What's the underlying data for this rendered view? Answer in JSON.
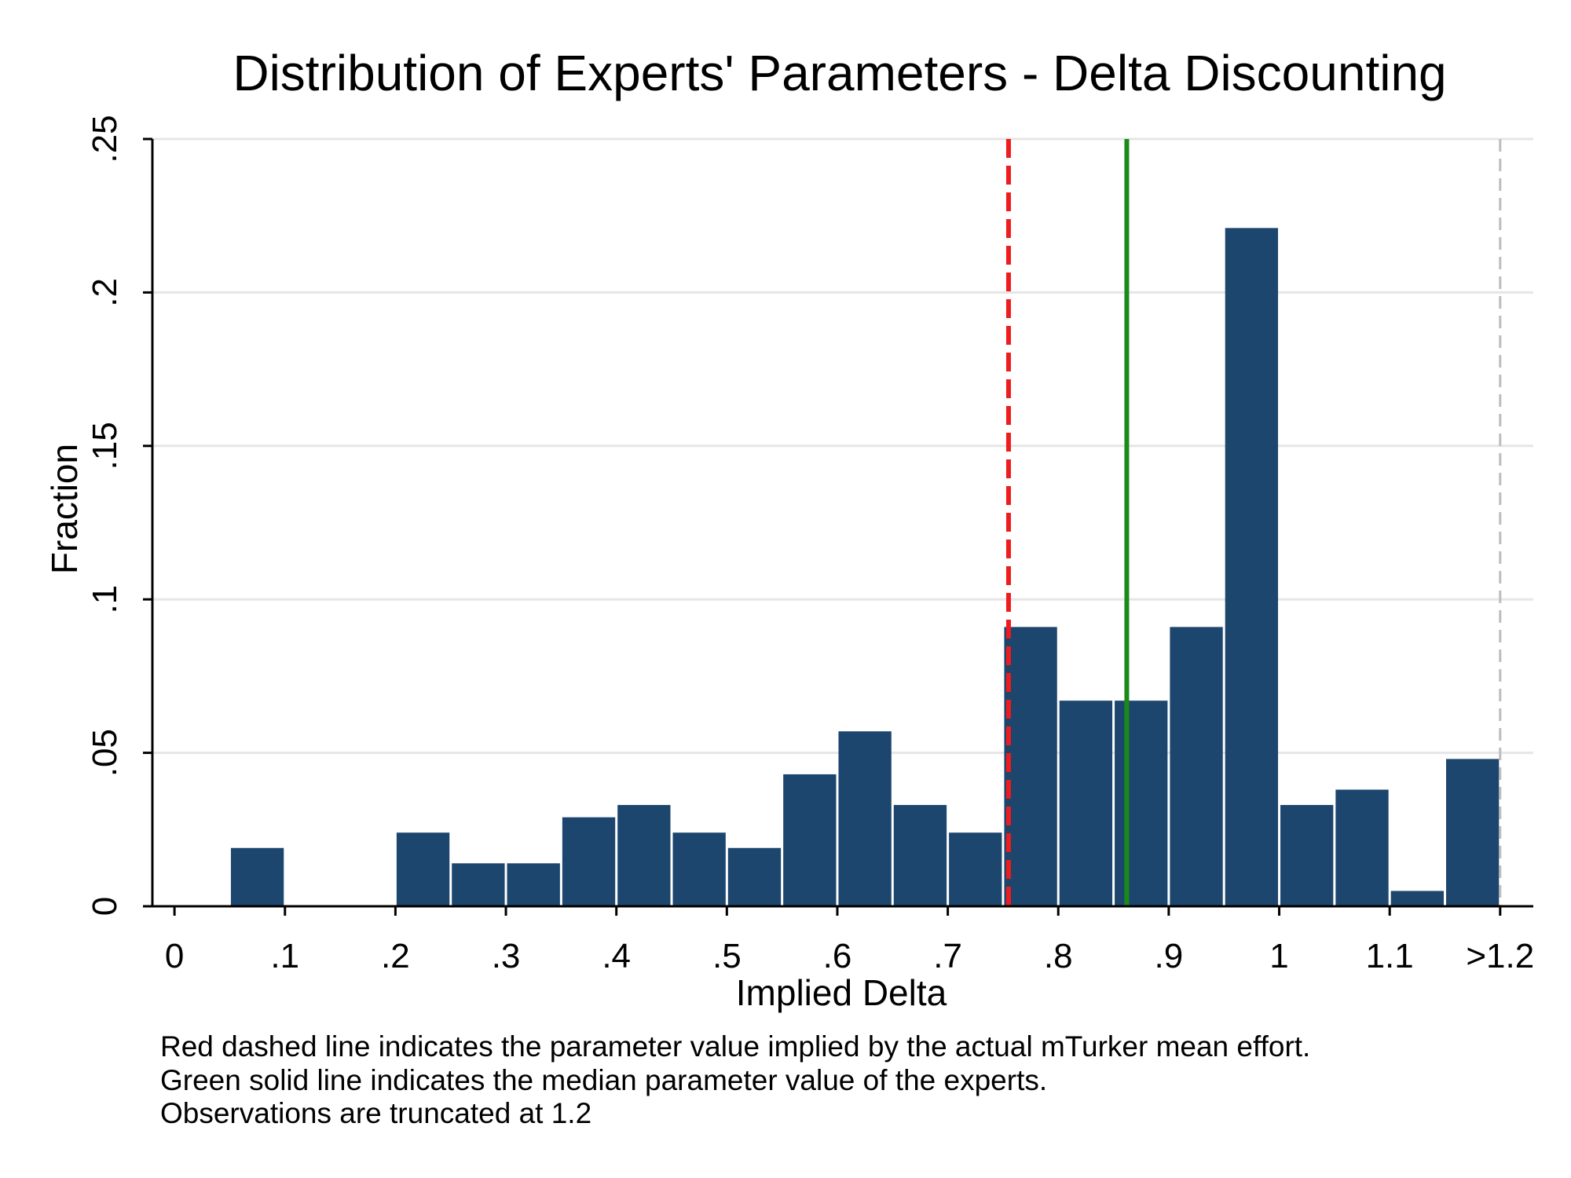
{
  "chart_data": {
    "type": "bar",
    "title": "Distribution of Experts' Parameters - Delta Discounting",
    "xlabel": "Implied Delta",
    "ylabel": "Fraction",
    "x_tick_labels": [
      "0",
      ".1",
      ".2",
      ".3",
      ".4",
      ".5",
      ".6",
      ".7",
      ".8",
      ".9",
      "1",
      "1.1",
      ">1.2"
    ],
    "x_tick_values": [
      0,
      0.1,
      0.2,
      0.3,
      0.4,
      0.5,
      0.6,
      0.7,
      0.8,
      0.9,
      1.0,
      1.1,
      1.2
    ],
    "y_tick_labels": [
      "0",
      ".05",
      ".1",
      ".15",
      ".2",
      ".25"
    ],
    "y_tick_values": [
      0,
      0.05,
      0.1,
      0.15,
      0.2,
      0.25
    ],
    "xlim": [
      -0.02,
      1.23
    ],
    "ylim": [
      0,
      0.25
    ],
    "bin_width": 0.05,
    "bins": [
      {
        "start": 0.05,
        "value": 0.019
      },
      {
        "start": 0.2,
        "value": 0.024
      },
      {
        "start": 0.25,
        "value": 0.014
      },
      {
        "start": 0.3,
        "value": 0.014
      },
      {
        "start": 0.35,
        "value": 0.029
      },
      {
        "start": 0.4,
        "value": 0.033
      },
      {
        "start": 0.45,
        "value": 0.024
      },
      {
        "start": 0.5,
        "value": 0.019
      },
      {
        "start": 0.55,
        "value": 0.043
      },
      {
        "start": 0.6,
        "value": 0.057
      },
      {
        "start": 0.65,
        "value": 0.033
      },
      {
        "start": 0.7,
        "value": 0.024
      },
      {
        "start": 0.75,
        "value": 0.091
      },
      {
        "start": 0.8,
        "value": 0.067
      },
      {
        "start": 0.85,
        "value": 0.067
      },
      {
        "start": 0.9,
        "value": 0.091
      },
      {
        "start": 0.95,
        "value": 0.221
      },
      {
        "start": 1.0,
        "value": 0.033
      },
      {
        "start": 1.05,
        "value": 0.038
      },
      {
        "start": 1.1,
        "value": 0.005
      },
      {
        "start": 1.15,
        "value": 0.048
      }
    ],
    "reference_lines": [
      {
        "x": 0.755,
        "style": "dashed",
        "color": "#ee1c1c"
      },
      {
        "x": 0.862,
        "style": "solid",
        "color": "#1a8a1a"
      },
      {
        "x": 1.2,
        "style": "dashed",
        "color": "#bdbdbd"
      }
    ],
    "bar_color": "#1d466e",
    "grid": true,
    "notes": [
      "Red dashed line indicates the parameter value implied by the actual mTurker mean effort.",
      "Green solid line indicates the median parameter value of the experts.",
      "Observations are truncated at 1.2"
    ]
  }
}
